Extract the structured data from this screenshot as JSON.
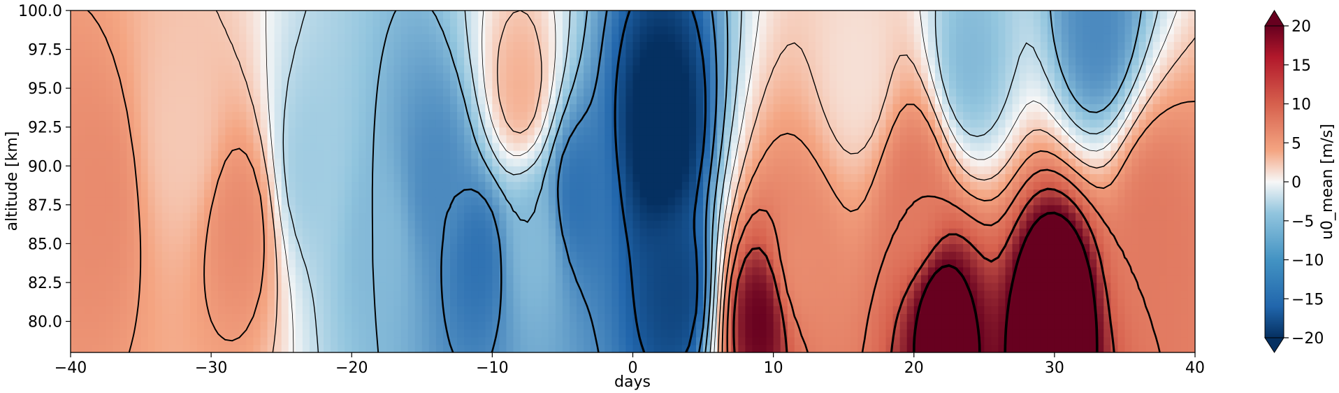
{
  "chart_data": {
    "type": "heatmap",
    "subtype": "filled-contour with overlaid contour lines",
    "xlabel": "days",
    "ylabel": "altitude [km]",
    "xlim": [
      -40,
      40
    ],
    "ylim": [
      78,
      100
    ],
    "x_ticks": [
      -40,
      -30,
      -20,
      -10,
      0,
      10,
      20,
      30,
      40
    ],
    "x_tick_labels": [
      "−40",
      "−30",
      "−20",
      "−10",
      "0",
      "10",
      "20",
      "30",
      "40"
    ],
    "y_ticks": [
      80.0,
      82.5,
      85.0,
      87.5,
      90.0,
      92.5,
      95.0,
      97.5,
      100.0
    ],
    "y_tick_labels": [
      "80.0",
      "82.5",
      "85.0",
      "87.5",
      "90.0",
      "92.5",
      "95.0",
      "97.5",
      "100.0"
    ],
    "grid": false,
    "colorbar": {
      "label": "u0_mean [m/s]",
      "range": [
        -20,
        20
      ],
      "extend": "both",
      "colormap": "RdBu_r",
      "ticks": [
        -20,
        -15,
        -10,
        -5,
        0,
        5,
        10,
        15,
        20
      ],
      "tick_labels": [
        "−20",
        "−15",
        "−10",
        "−5",
        "0",
        "5",
        "10",
        "15",
        "20"
      ]
    },
    "colors": {
      "neg_max": "#053061",
      "neg_mid": "#2166ac",
      "neg_low": "#92c5de",
      "zero": "#f7f7f7",
      "pos_low": "#f4a582",
      "pos_mid": "#d6604d",
      "pos_max": "#67001f"
    },
    "field_features": [
      {
        "x": -38,
        "y": 88,
        "value": 10
      },
      {
        "x": -32,
        "y": 92,
        "value": 4
      },
      {
        "x": -28,
        "y": 86,
        "value": 10
      },
      {
        "x": -23,
        "y": 90,
        "value": -6
      },
      {
        "x": -18,
        "y": 85,
        "value": -8
      },
      {
        "x": -14,
        "y": 89,
        "value": -12
      },
      {
        "x": -11,
        "y": 84,
        "value": -14
      },
      {
        "x": -8,
        "y": 95,
        "value": 6
      },
      {
        "x": -7,
        "y": 85,
        "value": -8
      },
      {
        "x": -4,
        "y": 88,
        "value": -14
      },
      {
        "x": 2,
        "y": 92,
        "value": -22
      },
      {
        "x": 3,
        "y": 82,
        "value": -18
      },
      {
        "x": 9,
        "y": 80,
        "value": 20
      },
      {
        "x": 12,
        "y": 84,
        "value": 10
      },
      {
        "x": 16,
        "y": 96,
        "value": 2
      },
      {
        "x": 20,
        "y": 88,
        "value": 12
      },
      {
        "x": 22,
        "y": 80,
        "value": 22
      },
      {
        "x": 24,
        "y": 97,
        "value": -8
      },
      {
        "x": 30,
        "y": 81,
        "value": 24
      },
      {
        "x": 33,
        "y": 99,
        "value": -12
      },
      {
        "x": 37,
        "y": 86,
        "value": 12
      }
    ]
  }
}
